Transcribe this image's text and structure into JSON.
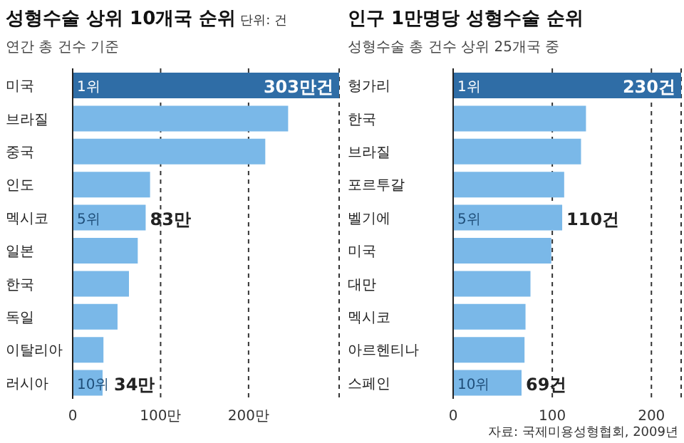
{
  "chart_data": [
    {
      "type": "bar",
      "orientation": "horizontal",
      "title": "성형수술 상위 10개국 순위",
      "subtitle": "연간 총 건수 기준",
      "categories": [
        "미국",
        "브라질",
        "중국",
        "인도",
        "멕시코",
        "일본",
        "한국",
        "독일",
        "이탈리아",
        "러시아"
      ],
      "values": [
        303,
        245,
        219,
        88,
        83,
        74,
        64,
        51,
        35,
        34
      ],
      "colors": [
        "#2f6da6",
        "#7ab8e8",
        "#7ab8e8",
        "#7ab8e8",
        "#7ab8e8",
        "#7ab8e8",
        "#7ab8e8",
        "#7ab8e8",
        "#7ab8e8",
        "#7ab8e8"
      ],
      "value_labels": [
        "303만건",
        null,
        null,
        null,
        "83만",
        null,
        null,
        null,
        null,
        "34만"
      ],
      "xlim": [
        0,
        303
      ],
      "xticks": [
        0,
        {
          "value": 100,
          "label": "100만"
        },
        {
          "value": 200,
          "label": "200만"
        }
      ],
      "grid": "x",
      "annotations": [
        "단위: 건",
        {
          "text": "1위",
          "y": "미국"
        },
        {
          "text": "5위",
          "y": "멕시코"
        },
        {
          "text": "10위",
          "y": "러시아"
        }
      ]
    },
    {
      "type": "bar",
      "orientation": "horizontal",
      "title": "인구 1만명당 성형수술 순위",
      "subtitle": "성형수술 총 건수 상위 25개국 중",
      "categories": [
        "헝가리",
        "한국",
        "브라질",
        "포르투갈",
        "벨기에",
        "미국",
        "대만",
        "멕시코",
        "아르헨티나",
        "스페인"
      ],
      "values": [
        230,
        134,
        129,
        112,
        110,
        99,
        78,
        73,
        72,
        69
      ],
      "colors": [
        "#2f6da6",
        "#7ab8e8",
        "#7ab8e8",
        "#7ab8e8",
        "#7ab8e8",
        "#7ab8e8",
        "#7ab8e8",
        "#7ab8e8",
        "#7ab8e8",
        "#7ab8e8"
      ],
      "value_labels": [
        "230건",
        null,
        null,
        null,
        "110건",
        null,
        null,
        null,
        null,
        "69건"
      ],
      "xlim": [
        0,
        230
      ],
      "xticks": [
        0,
        100,
        200
      ],
      "grid": "x",
      "annotations": [
        {
          "text": "1위",
          "y": "헝가리"
        },
        {
          "text": "5위",
          "y": "벨기에"
        },
        {
          "text": "10위",
          "y": "스페인"
        },
        "자료: 국제미용성형협회, 2009년"
      ]
    }
  ]
}
